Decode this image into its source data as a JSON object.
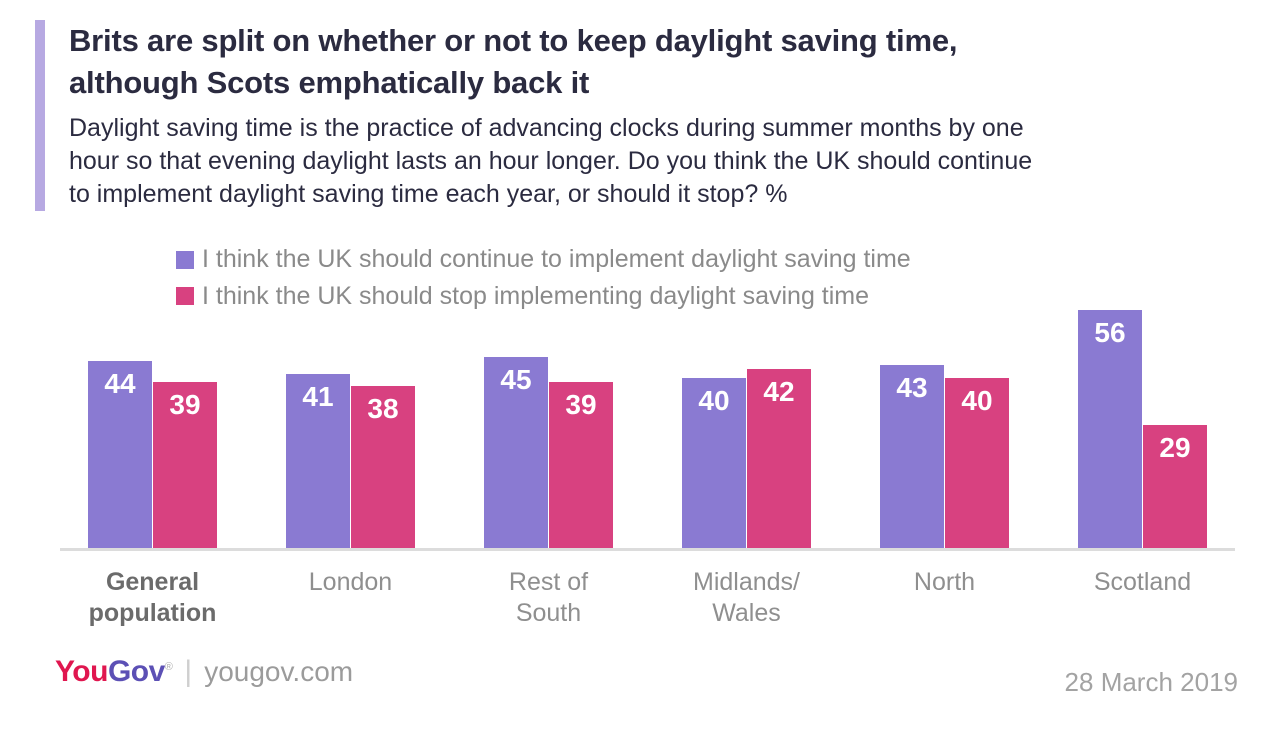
{
  "header": {
    "title": "Brits are split on whether or not to keep daylight saving time,\nalthough Scots emphatically back it",
    "subtitle": "Daylight saving time is the practice of advancing clocks during summer months by one\nhour so that evening daylight lasts an hour longer. Do you think the UK should continue\nto implement daylight saving time each year, or should it stop? %",
    "accent_color": "#b7a9e2"
  },
  "legend": {
    "items": [
      {
        "label": "I think the UK should continue to implement daylight saving time",
        "color": "#8a7ad2"
      },
      {
        "label": "I think the UK should stop implementing daylight saving time",
        "color": "#d84180"
      }
    ]
  },
  "chart_data": {
    "type": "bar",
    "title": "Brits are split on whether or not to keep daylight saving time, although Scots emphatically back it",
    "categories": [
      "General\npopulation",
      "London",
      "Rest of South",
      "Midlands/\nWales",
      "North",
      "Scotland"
    ],
    "series": [
      {
        "name": "I think the UK should continue to implement daylight saving time",
        "color": "#8a7ad2",
        "values": [
          44,
          41,
          45,
          40,
          43,
          56
        ]
      },
      {
        "name": "I think the UK should stop implementing daylight saving time",
        "color": "#d84180",
        "values": [
          39,
          38,
          39,
          42,
          40,
          29
        ]
      }
    ],
    "ylim": [
      0,
      59
    ],
    "value_labels": true,
    "grid": false,
    "legend_position": "top",
    "baseline_color": "#dcdcdc",
    "xlabel": "",
    "ylabel": ""
  },
  "footer": {
    "logo": {
      "you": "You",
      "gov": "Gov",
      "registered": "®",
      "you_color": "#e0164f",
      "gov_color": "#5c50b5"
    },
    "separator": "|",
    "website": "yougov.com",
    "date": "28 March 2019"
  }
}
